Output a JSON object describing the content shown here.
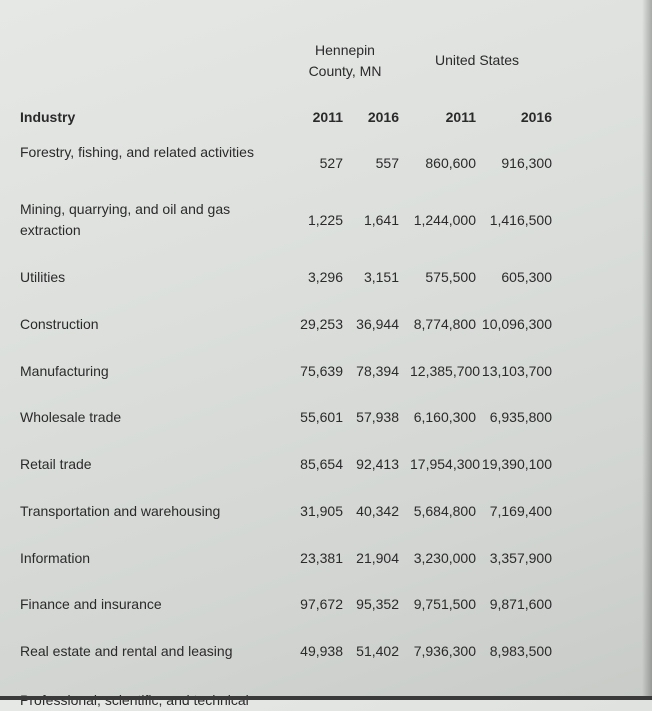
{
  "header": {
    "group1": [
      "Hennepin",
      "County, MN"
    ],
    "group2": "United States",
    "industry_label": "Industry",
    "years": [
      "2011",
      "2016",
      "2011",
      "2016"
    ]
  },
  "rows": [
    {
      "industry": "Forestry, fishing, and related activities",
      "values": [
        "527",
        "557",
        "860,600",
        "916,300"
      ]
    },
    {
      "industry": "Mining, quarrying, and oil and gas extraction",
      "values": [
        "1,225",
        "1,641",
        "1,244,000",
        "1,416,500"
      ]
    },
    {
      "industry": "Utilities",
      "values": [
        "3,296",
        "3,151",
        "575,500",
        "605,300"
      ]
    },
    {
      "industry": "Construction",
      "values": [
        "29,253",
        "36,944",
        "8,774,800",
        "10,096,300"
      ]
    },
    {
      "industry": "Manufacturing",
      "values": [
        "75,639",
        "78,394",
        "12,385,700",
        "13,103,700"
      ]
    },
    {
      "industry": "Wholesale trade",
      "values": [
        "55,601",
        "57,938",
        "6,160,300",
        "6,935,800"
      ]
    },
    {
      "industry": "Retail trade",
      "values": [
        "85,654",
        "92,413",
        "17,954,300",
        "19,390,100"
      ]
    },
    {
      "industry": "Transportation and warehousing",
      "values": [
        "31,905",
        "40,342",
        "5,684,800",
        "7,169,400"
      ]
    },
    {
      "industry": "Information",
      "values": [
        "23,381",
        "21,904",
        "3,230,000",
        "3,357,900"
      ]
    },
    {
      "industry": "Finance and insurance",
      "values": [
        "97,672",
        "95,352",
        "9,751,500",
        "9,871,600"
      ]
    },
    {
      "industry": "Real estate and rental and leasing",
      "values": [
        "49,938",
        "51,402",
        "7,936,300",
        "8,983,500"
      ]
    },
    {
      "industry": "Professional, scientific, and technical",
      "values": []
    }
  ]
}
